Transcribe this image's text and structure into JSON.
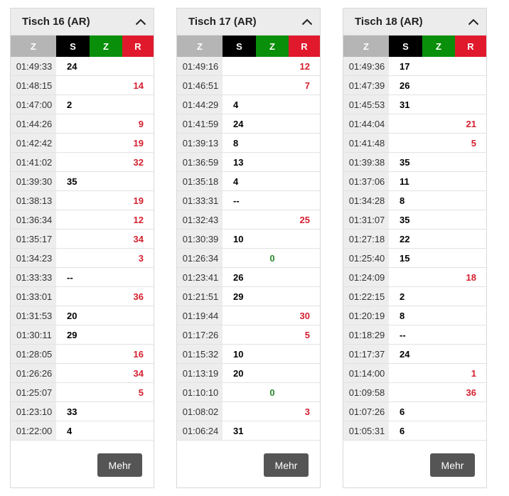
{
  "colors": {
    "z": "#b5b5b5",
    "s": "#000000",
    "zero": "#0a8f0a",
    "r": "#e0192c"
  },
  "icons": {
    "collapse": "chevron-up-icon"
  },
  "panels": [
    {
      "title": "Tisch 16 (AR)",
      "headers": [
        "Z",
        "S",
        "Z",
        "R"
      ],
      "more_label": "Mehr",
      "rows": [
        {
          "time": "01:49:33",
          "s": "24",
          "z": "",
          "r": ""
        },
        {
          "time": "01:48:15",
          "s": "",
          "z": "",
          "r": "14"
        },
        {
          "time": "01:47:00",
          "s": "2",
          "z": "",
          "r": ""
        },
        {
          "time": "01:44:26",
          "s": "",
          "z": "",
          "r": "9"
        },
        {
          "time": "01:42:42",
          "s": "",
          "z": "",
          "r": "19"
        },
        {
          "time": "01:41:02",
          "s": "",
          "z": "",
          "r": "32"
        },
        {
          "time": "01:39:30",
          "s": "35",
          "z": "",
          "r": ""
        },
        {
          "time": "01:38:13",
          "s": "",
          "z": "",
          "r": "19"
        },
        {
          "time": "01:36:34",
          "s": "",
          "z": "",
          "r": "12"
        },
        {
          "time": "01:35:17",
          "s": "",
          "z": "",
          "r": "34"
        },
        {
          "time": "01:34:23",
          "s": "",
          "z": "",
          "r": "3"
        },
        {
          "time": "01:33:33",
          "s": "--",
          "z": "",
          "r": ""
        },
        {
          "time": "01:33:01",
          "s": "",
          "z": "",
          "r": "36"
        },
        {
          "time": "01:31:53",
          "s": "20",
          "z": "",
          "r": ""
        },
        {
          "time": "01:30:11",
          "s": "29",
          "z": "",
          "r": ""
        },
        {
          "time": "01:28:05",
          "s": "",
          "z": "",
          "r": "16"
        },
        {
          "time": "01:26:26",
          "s": "",
          "z": "",
          "r": "34"
        },
        {
          "time": "01:25:07",
          "s": "",
          "z": "",
          "r": "5"
        },
        {
          "time": "01:23:10",
          "s": "33",
          "z": "",
          "r": ""
        },
        {
          "time": "01:22:00",
          "s": "4",
          "z": "",
          "r": ""
        }
      ]
    },
    {
      "title": "Tisch 17 (AR)",
      "headers": [
        "Z",
        "S",
        "Z",
        "R"
      ],
      "more_label": "Mehr",
      "rows": [
        {
          "time": "01:49:16",
          "s": "",
          "z": "",
          "r": "12"
        },
        {
          "time": "01:46:51",
          "s": "",
          "z": "",
          "r": "7"
        },
        {
          "time": "01:44:29",
          "s": "4",
          "z": "",
          "r": ""
        },
        {
          "time": "01:41:59",
          "s": "24",
          "z": "",
          "r": ""
        },
        {
          "time": "01:39:13",
          "s": "8",
          "z": "",
          "r": ""
        },
        {
          "time": "01:36:59",
          "s": "13",
          "z": "",
          "r": ""
        },
        {
          "time": "01:35:18",
          "s": "4",
          "z": "",
          "r": ""
        },
        {
          "time": "01:33:31",
          "s": "--",
          "z": "",
          "r": ""
        },
        {
          "time": "01:32:43",
          "s": "",
          "z": "",
          "r": "25"
        },
        {
          "time": "01:30:39",
          "s": "10",
          "z": "",
          "r": ""
        },
        {
          "time": "01:26:34",
          "s": "",
          "z": "0",
          "r": ""
        },
        {
          "time": "01:23:41",
          "s": "26",
          "z": "",
          "r": ""
        },
        {
          "time": "01:21:51",
          "s": "29",
          "z": "",
          "r": ""
        },
        {
          "time": "01:19:44",
          "s": "",
          "z": "",
          "r": "30"
        },
        {
          "time": "01:17:26",
          "s": "",
          "z": "",
          "r": "5"
        },
        {
          "time": "01:15:32",
          "s": "10",
          "z": "",
          "r": ""
        },
        {
          "time": "01:13:19",
          "s": "20",
          "z": "",
          "r": ""
        },
        {
          "time": "01:10:10",
          "s": "",
          "z": "0",
          "r": ""
        },
        {
          "time": "01:08:02",
          "s": "",
          "z": "",
          "r": "3"
        },
        {
          "time": "01:06:24",
          "s": "31",
          "z": "",
          "r": ""
        }
      ]
    },
    {
      "title": "Tisch 18 (AR)",
      "headers": [
        "Z",
        "S",
        "Z",
        "R"
      ],
      "more_label": "Mehr",
      "rows": [
        {
          "time": "01:49:36",
          "s": "17",
          "z": "",
          "r": ""
        },
        {
          "time": "01:47:39",
          "s": "26",
          "z": "",
          "r": ""
        },
        {
          "time": "01:45:53",
          "s": "31",
          "z": "",
          "r": ""
        },
        {
          "time": "01:44:04",
          "s": "",
          "z": "",
          "r": "21"
        },
        {
          "time": "01:41:48",
          "s": "",
          "z": "",
          "r": "5"
        },
        {
          "time": "01:39:38",
          "s": "35",
          "z": "",
          "r": ""
        },
        {
          "time": "01:37:06",
          "s": "11",
          "z": "",
          "r": ""
        },
        {
          "time": "01:34:28",
          "s": "8",
          "z": "",
          "r": ""
        },
        {
          "time": "01:31:07",
          "s": "35",
          "z": "",
          "r": ""
        },
        {
          "time": "01:27:18",
          "s": "22",
          "z": "",
          "r": ""
        },
        {
          "time": "01:25:40",
          "s": "15",
          "z": "",
          "r": ""
        },
        {
          "time": "01:24:09",
          "s": "",
          "z": "",
          "r": "18"
        },
        {
          "time": "01:22:15",
          "s": "2",
          "z": "",
          "r": ""
        },
        {
          "time": "01:20:19",
          "s": "8",
          "z": "",
          "r": ""
        },
        {
          "time": "01:18:29",
          "s": "--",
          "z": "",
          "r": ""
        },
        {
          "time": "01:17:37",
          "s": "24",
          "z": "",
          "r": ""
        },
        {
          "time": "01:14:00",
          "s": "",
          "z": "",
          "r": "1"
        },
        {
          "time": "01:09:58",
          "s": "",
          "z": "",
          "r": "36"
        },
        {
          "time": "01:07:26",
          "s": "6",
          "z": "",
          "r": ""
        },
        {
          "time": "01:05:31",
          "s": "6",
          "z": "",
          "r": ""
        }
      ]
    }
  ]
}
